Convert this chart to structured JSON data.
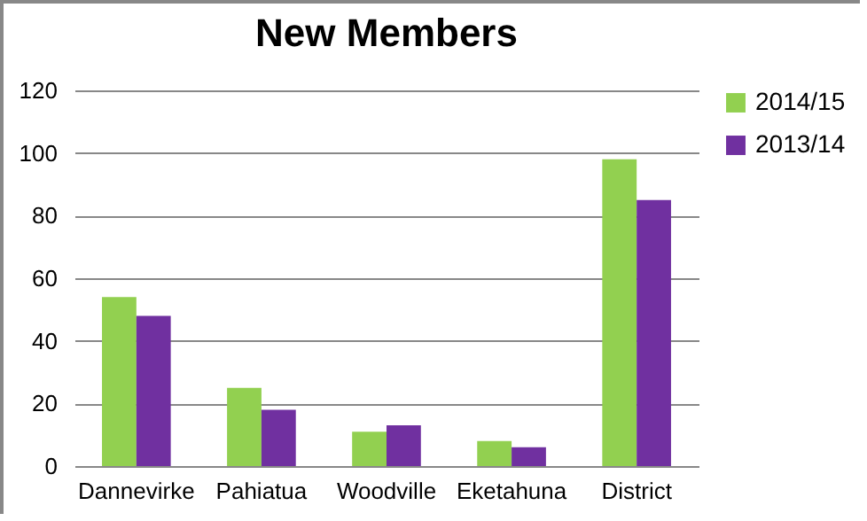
{
  "chart_data": {
    "type": "bar",
    "title": "New Members",
    "categories": [
      "Dannevirke",
      "Pahiatua",
      "Woodville",
      "Eketahuna",
      "District"
    ],
    "series": [
      {
        "name": "2014/15",
        "color": "#92d050",
        "values": [
          54,
          25,
          11,
          8,
          98
        ]
      },
      {
        "name": "2013/14",
        "color": "#7030a0",
        "values": [
          48,
          18,
          13,
          6,
          85
        ]
      }
    ],
    "ylim": [
      0,
      120
    ],
    "yticks": [
      0,
      20,
      40,
      60,
      80,
      100,
      120
    ],
    "grid": "y",
    "legend": "right"
  }
}
